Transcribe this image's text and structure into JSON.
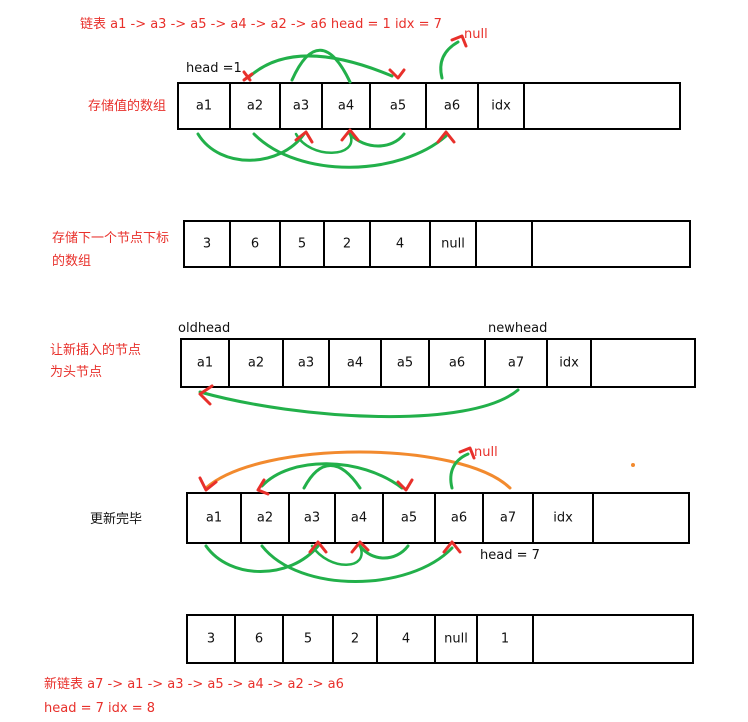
{
  "title": "链表 a1 -> a3 -> a5 -> a4 -> a2 -> a6    head  = 1 idx = 7",
  "label_values_array": "存储值的数组",
  "label_next_array_line1": "存储下一个节点下标",
  "label_next_array_line2": "的数组",
  "label_insert_line1": "让新插入的节点",
  "label_insert_line2": "为头节点",
  "label_done": "更新完毕",
  "head_eq_1": "head =1",
  "null_label": "null",
  "oldhead": "oldhead",
  "newhead": "newhead",
  "head_eq_7": "head = 7",
  "new_list": "新链表 a7 -> a1 -> a3 -> a5 -> a4 -> a2 -> a6",
  "footer": "head = 7   idx = 8",
  "values_row": [
    "a1",
    "a2",
    "a3",
    "a4",
    "a5",
    "a6",
    "idx",
    ""
  ],
  "next_row": [
    "3",
    "6",
    "5",
    "2",
    "4",
    "null",
    "",
    ""
  ],
  "values_row_new": [
    "a1",
    "a2",
    "a3",
    "a4",
    "a5",
    "a6",
    "a7",
    "idx",
    ""
  ],
  "next_row_new": [
    "3",
    "6",
    "5",
    "2",
    "4",
    "null",
    "1",
    ""
  ],
  "colors": {
    "red": "#e8302b",
    "green": "#22b04a",
    "orange": "#f28a2e",
    "black": "#000000"
  }
}
